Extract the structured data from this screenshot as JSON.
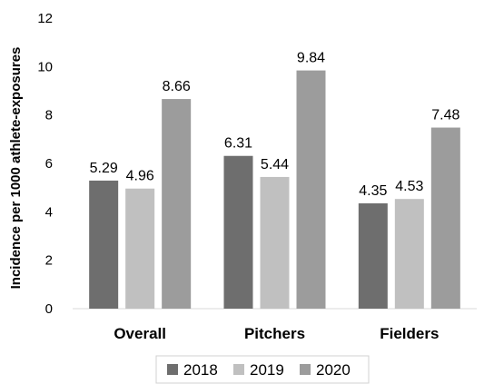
{
  "chart_data": {
    "type": "bar",
    "categories": [
      "Overall",
      "Pitchers",
      "Fielders"
    ],
    "series": [
      {
        "name": "2018",
        "values": [
          5.29,
          6.31,
          4.35
        ],
        "color": "#6e6e6e"
      },
      {
        "name": "2019",
        "values": [
          4.96,
          5.44,
          4.53
        ],
        "color": "#c0c0c0"
      },
      {
        "name": "2020",
        "values": [
          8.66,
          9.84,
          7.48
        ],
        "color": "#9c9c9c"
      }
    ],
    "data_labels": [
      [
        "5.29",
        "6.31",
        "4.35"
      ],
      [
        "4.96",
        "5.44",
        "4.53"
      ],
      [
        "8.66",
        "9.84",
        "7.48"
      ]
    ],
    "title": "",
    "xlabel": "",
    "ylabel": "Incidence per 1000 athlete-exposures",
    "ylim": [
      0,
      12
    ],
    "yticks": [
      0,
      2,
      4,
      6,
      8,
      10,
      12
    ],
    "ytick_labels": [
      "0",
      "2",
      "4",
      "6",
      "8",
      "10",
      "12"
    ],
    "grid": false,
    "legend": "bottom"
  }
}
